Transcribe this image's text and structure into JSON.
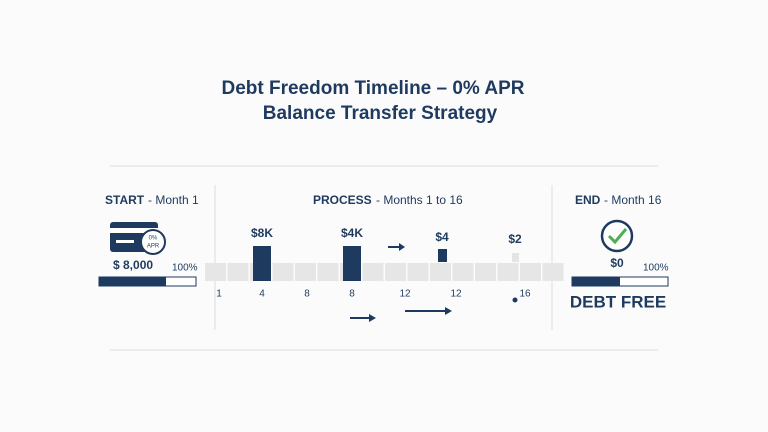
{
  "header": {
    "title_line1": "Debt Freedom Timeline – 0% APR",
    "title_line2": "Balance Transfer Strategy"
  },
  "start": {
    "label": "START",
    "period": "- Month 1",
    "card_rate": "0%",
    "card_apr": "APR",
    "amount": "$ 8,000",
    "percent": "100%"
  },
  "process": {
    "label": "PROCESS",
    "period": "- Months 1 to 16",
    "bar_labels": [
      "$8K",
      "$4K",
      "$4",
      "$2"
    ],
    "axis_labels": [
      "1",
      "4",
      "8",
      "8",
      "12",
      "12",
      "16"
    ]
  },
  "end": {
    "label": "END",
    "period": "- Month 16",
    "amount": "$0",
    "percent": "100%",
    "status": "DEBT FREE"
  }
}
